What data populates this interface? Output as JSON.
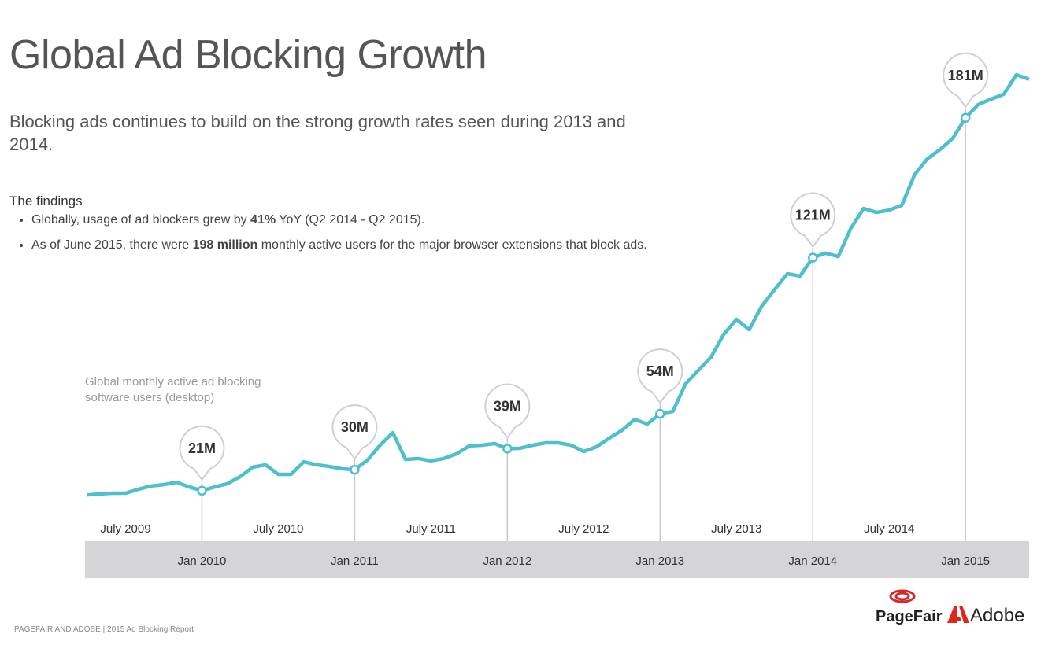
{
  "title": "Global Ad Blocking Growth",
  "subtitle": "Blocking ads continues to build on the strong growth rates seen during 2013 and 2014.",
  "findings": {
    "heading": "The findings",
    "items": [
      [
        "Globally, usage of ad blockers grew by ",
        "41%",
        " YoY (Q2 2014 - Q2 2015)."
      ],
      [
        "As of June 2015, there were ",
        "198 million",
        " monthly active users for the major browser extensions that block ads."
      ]
    ]
  },
  "chart_data": {
    "type": "line",
    "x": [
      "2009-04",
      "2009-05",
      "2009-06",
      "2009-07",
      "2009-08",
      "2009-09",
      "2009-10",
      "2009-11",
      "2009-12",
      "2010-01",
      "2010-02",
      "2010-03",
      "2010-04",
      "2010-05",
      "2010-06",
      "2010-07",
      "2010-08",
      "2010-09",
      "2010-10",
      "2010-11",
      "2010-12",
      "2011-01",
      "2011-02",
      "2011-03",
      "2011-04",
      "2011-05",
      "2011-06",
      "2011-07",
      "2011-08",
      "2011-09",
      "2011-10",
      "2011-11",
      "2011-12",
      "2012-01",
      "2012-02",
      "2012-03",
      "2012-04",
      "2012-05",
      "2012-06",
      "2012-07",
      "2012-08",
      "2012-09",
      "2012-10",
      "2012-11",
      "2012-12",
      "2013-01",
      "2013-02",
      "2013-03",
      "2013-04",
      "2013-05",
      "2013-06",
      "2013-07",
      "2013-08",
      "2013-09",
      "2013-10",
      "2013-11",
      "2013-12",
      "2014-01",
      "2014-02",
      "2014-03",
      "2014-04",
      "2014-05",
      "2014-06",
      "2014-07",
      "2014-08",
      "2014-09",
      "2014-10",
      "2014-11",
      "2014-12",
      "2015-01",
      "2015-02",
      "2015-03",
      "2015-04",
      "2015-05",
      "2015-06"
    ],
    "series": [
      {
        "name": "Global monthly active ad blocking software users (desktop)",
        "color": "#4fbfcc",
        "values": [
          19.2,
          19.6,
          19.9,
          19.9,
          21.6,
          23.0,
          23.6,
          24.6,
          22.6,
          21,
          22.6,
          24.0,
          27.0,
          31.1,
          32.1,
          28.0,
          28.0,
          33.4,
          32.1,
          31.4,
          30.4,
          30,
          34.1,
          40.5,
          45.9,
          34.4,
          34.8,
          33.8,
          34.8,
          36.8,
          40.2,
          40.5,
          41.2,
          39,
          39.2,
          40.5,
          41.5,
          41.5,
          40.5,
          37.8,
          39.8,
          43.5,
          46.9,
          51.6,
          49.6,
          54,
          55.0,
          66.8,
          72.6,
          78.3,
          88.1,
          94.5,
          90.1,
          100.3,
          107.3,
          114.1,
          113.1,
          121,
          122.9,
          121.5,
          133.7,
          142.1,
          140.4,
          141.4,
          143.5,
          156.6,
          163.4,
          167.4,
          172.2,
          181,
          186.7,
          189.0,
          191.1,
          199.5,
          197.5
        ]
      }
    ],
    "callouts": [
      {
        "x": "2010-01",
        "value": 21,
        "label": "21M"
      },
      {
        "x": "2011-01",
        "value": 30,
        "label": "30M"
      },
      {
        "x": "2012-01",
        "value": 39,
        "label": "39M"
      },
      {
        "x": "2013-01",
        "value": 54,
        "label": "54M"
      },
      {
        "x": "2014-01",
        "value": 121,
        "label": "121M"
      },
      {
        "x": "2015-01",
        "value": 181,
        "label": "181M"
      }
    ],
    "xlim": [
      "2009-04",
      "2015-06"
    ],
    "xticks": [
      {
        "value": "2009-07",
        "label": "July 2009"
      },
      {
        "value": "2010-01",
        "label": "Jan 2010"
      },
      {
        "value": "2010-07",
        "label": "July 2010"
      },
      {
        "value": "2011-01",
        "label": "Jan 2011"
      },
      {
        "value": "2011-07",
        "label": "July 2011"
      },
      {
        "value": "2012-01",
        "label": "Jan 2012"
      },
      {
        "value": "2012-07",
        "label": "July 2012"
      },
      {
        "value": "2013-01",
        "label": "Jan 2013"
      },
      {
        "value": "2013-07",
        "label": "July 2013"
      },
      {
        "value": "2014-01",
        "label": "Jan 2014"
      },
      {
        "value": "2014-07",
        "label": "July 2014"
      },
      {
        "value": "2015-01",
        "label": "Jan 2015"
      }
    ],
    "ylim": [
      0,
      200
    ]
  },
  "footer": "PAGEFAIR AND ADOBE | 2015 Ad Blocking Report",
  "logos": [
    "PageFair",
    "Adobe"
  ]
}
